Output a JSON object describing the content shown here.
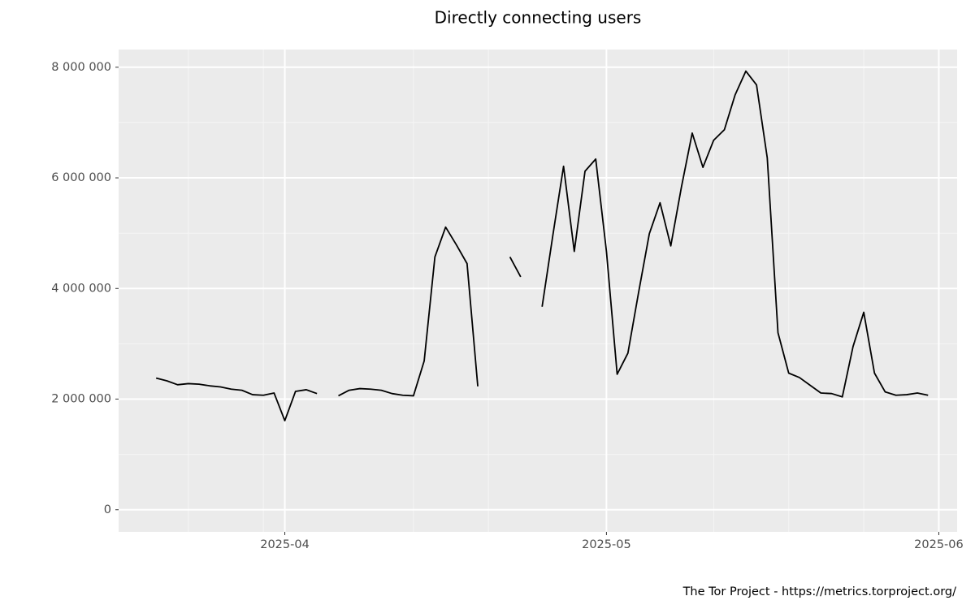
{
  "chart_data": {
    "type": "line",
    "title": "Directly connecting users",
    "caption": "The Tor Project - https://metrics.torproject.org/",
    "x": [
      "2025-03-20",
      "2025-03-21",
      "2025-03-22",
      "2025-03-23",
      "2025-03-24",
      "2025-03-25",
      "2025-03-26",
      "2025-03-27",
      "2025-03-28",
      "2025-03-29",
      "2025-03-30",
      "2025-03-31",
      "2025-04-01",
      "2025-04-02",
      "2025-04-03",
      "2025-04-04",
      "2025-04-05",
      "2025-04-06",
      "2025-04-07",
      "2025-04-08",
      "2025-04-09",
      "2025-04-10",
      "2025-04-11",
      "2025-04-12",
      "2025-04-13",
      "2025-04-14",
      "2025-04-15",
      "2025-04-16",
      "2025-04-17",
      "2025-04-18",
      "2025-04-19",
      "2025-04-20",
      "2025-04-21",
      "2025-04-22",
      "2025-04-23",
      "2025-04-24",
      "2025-04-25",
      "2025-04-26",
      "2025-04-27",
      "2025-04-28",
      "2025-04-29",
      "2025-04-30",
      "2025-05-01",
      "2025-05-02",
      "2025-05-03",
      "2025-05-04",
      "2025-05-05",
      "2025-05-06",
      "2025-05-07",
      "2025-05-08",
      "2025-05-09",
      "2025-05-10",
      "2025-05-11",
      "2025-05-12",
      "2025-05-13",
      "2025-05-14",
      "2025-05-15",
      "2025-05-16",
      "2025-05-17",
      "2025-05-18",
      "2025-05-19",
      "2025-05-20",
      "2025-05-21",
      "2025-05-22",
      "2025-05-23",
      "2025-05-24",
      "2025-05-25",
      "2025-05-26",
      "2025-05-27",
      "2025-05-28",
      "2025-05-29",
      "2025-05-30",
      "2025-05-31"
    ],
    "series": [
      {
        "name": "users",
        "color": "#000000",
        "values": [
          2380000,
          2330000,
          2260000,
          2280000,
          2270000,
          2240000,
          2220000,
          2180000,
          2160000,
          2080000,
          2070000,
          2110000,
          1610000,
          2140000,
          2170000,
          2100000,
          null,
          2060000,
          2160000,
          2190000,
          2180000,
          2160000,
          2100000,
          2070000,
          2060000,
          2690000,
          4570000,
          5110000,
          4790000,
          4450000,
          2230000,
          null,
          null,
          4570000,
          4210000,
          null,
          3670000,
          4960000,
          6210000,
          4670000,
          6120000,
          6340000,
          4670000,
          2450000,
          2830000,
          3930000,
          4990000,
          5550000,
          4770000,
          5840000,
          6810000,
          6190000,
          6680000,
          6870000,
          7500000,
          7930000,
          7680000,
          6360000,
          3200000,
          2470000,
          2390000,
          2250000,
          2110000,
          2100000,
          2040000,
          2950000,
          3570000,
          2470000,
          2130000,
          2070000,
          2080000,
          2110000,
          2070000
        ]
      }
    ],
    "xlim": [
      "2025-03-16T12:00",
      "2025-06-02T17:00"
    ],
    "xticks": [
      {
        "value": "2025-04-01",
        "label": "2025-04"
      },
      {
        "value": "2025-05-01",
        "label": "2025-05"
      },
      {
        "value": "2025-06-01",
        "label": "2025-06"
      }
    ],
    "xminor": [
      "2025-03-23",
      "2025-03-30",
      "2025-04-13",
      "2025-04-20",
      "2025-05-11",
      "2025-05-18",
      "2025-05-25"
    ],
    "ylim": [
      -400000,
      8320000
    ],
    "yticks": [
      0,
      {
        "value": 2000000,
        "label": "2 000 000"
      },
      {
        "value": 4000000,
        "label": "4 000 000"
      },
      {
        "value": 6000000,
        "label": "6 000 000"
      },
      {
        "value": 8000000,
        "label": "8 000 000"
      }
    ],
    "yminor": [
      1000000,
      3000000,
      5000000,
      7000000
    ],
    "grid": true
  }
}
